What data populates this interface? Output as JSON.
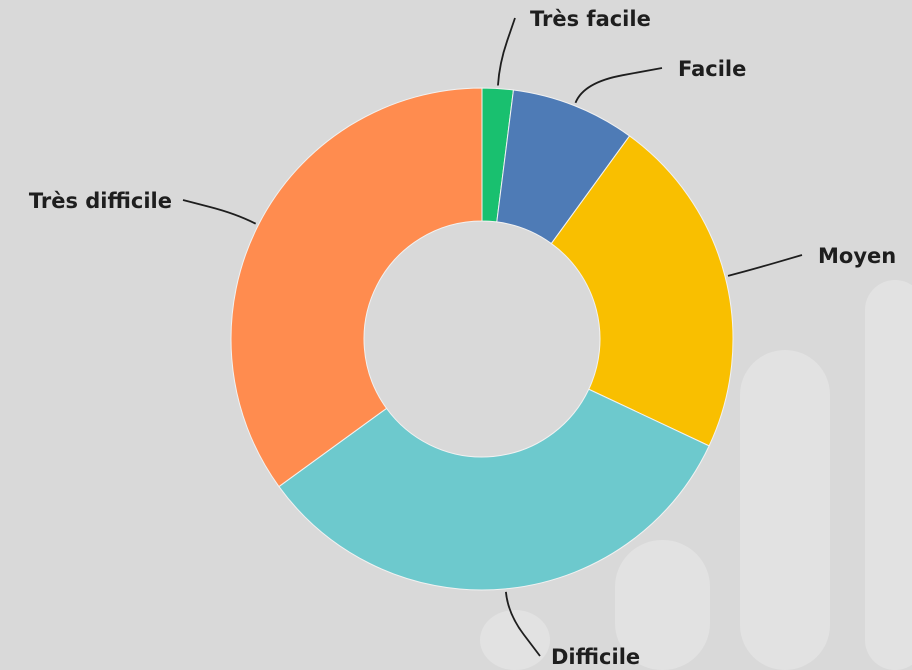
{
  "chart_data": {
    "type": "donut",
    "categories": [
      "Très facile",
      "Facile",
      "Moyen",
      "Difficile",
      "Très difficile"
    ],
    "values": [
      2,
      8,
      22,
      33,
      35
    ],
    "colors": [
      "#19c06f",
      "#4e7bb6",
      "#f9bf00",
      "#6dc9cd",
      "#ff8c4f"
    ]
  }
}
